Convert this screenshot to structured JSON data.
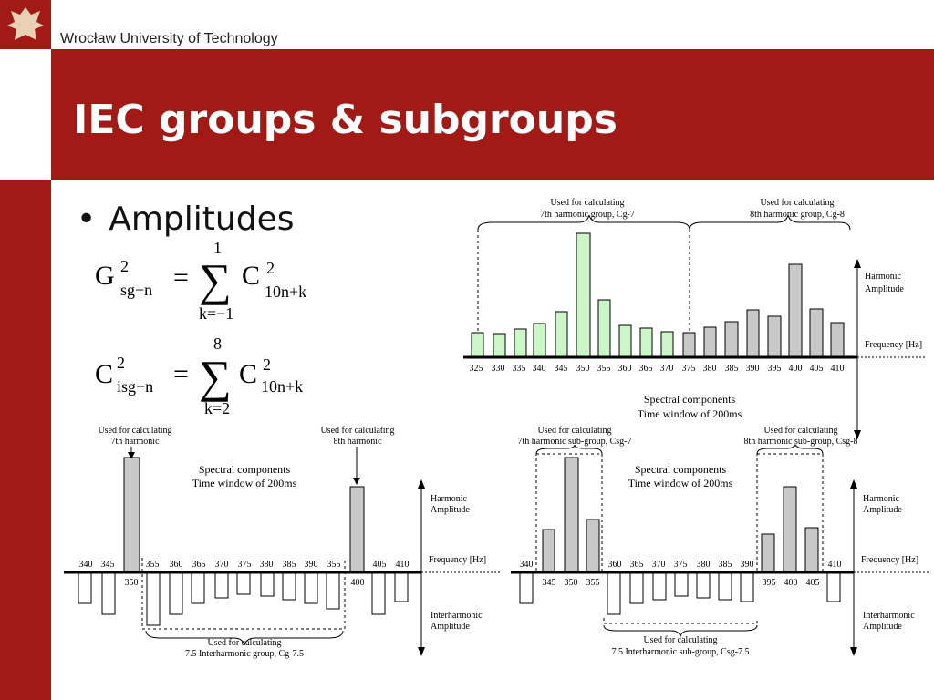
{
  "header": {
    "university": "Wrocław University of Technology",
    "title": "IEC groups & subgroups"
  },
  "bullet": {
    "label": "Amplitudes"
  },
  "formula1": {
    "lhs": "G",
    "lhs_sup": "2",
    "lhs_sub": "sg−n",
    "eq": "=",
    "sum_top": "1",
    "sum_bottom": "k=−1",
    "rhs": "C",
    "rhs_sup": "2",
    "rhs_sub": "10n+k"
  },
  "formula2": {
    "lhs": "C",
    "lhs_sup": "2",
    "lhs_sub": "isg−n",
    "eq": "=",
    "sum_top": "8",
    "sum_bottom": "k=2",
    "rhs": "C",
    "rhs_sup": "2",
    "rhs_sub": "10n+k"
  },
  "labels": {
    "spectral": "Spectral components",
    "window": "Time window of 200ms",
    "harmonic_amp_1": "Harmonic",
    "harmonic_amp_2": "Amplitude",
    "freq": "Frequency [Hz]",
    "interharmonic_1": "Interharmonic",
    "interharmonic_2": "Amplitude",
    "used_for": "Used for calculating"
  },
  "fig1": {
    "ann_left": "7th harmonic group, Cg-7",
    "ann_right": "8th harmonic group, Cg-8",
    "freqs": [
      "325",
      "330",
      "335",
      "340",
      "345",
      "350",
      "355",
      "360",
      "365",
      "370",
      "375",
      "380",
      "385",
      "390",
      "395",
      "400",
      "405",
      "410"
    ]
  },
  "fig2": {
    "ann_top_left": "7th harmonic",
    "ann_top_right": "8th harmonic",
    "ann_bottom": "7.5 Interharmonic group, Cg-7.5",
    "top_labels": [
      "340",
      "345",
      "355",
      "360",
      "365",
      "370",
      "375",
      "380",
      "385",
      "390",
      "355",
      "405",
      "410"
    ],
    "below_labels": [
      "350",
      "400"
    ]
  },
  "fig3": {
    "ann_top_left": "7th harmonic sub-group, Csg-7",
    "ann_top_right": "8th harmonic sub-group, Csg-8",
    "ann_bottom": "7.5 Interharmonic sub-group, Csg-7.5",
    "top_labels": [
      "340",
      "360",
      "365",
      "370",
      "375",
      "380",
      "385",
      "390",
      "410"
    ],
    "below_labels": [
      "345",
      "350",
      "355",
      "395",
      "400",
      "405"
    ]
  },
  "colors": {
    "brand": "#a21a16",
    "green_bar": "#ccf5c8",
    "gray_bar": "#c8c8c8"
  }
}
